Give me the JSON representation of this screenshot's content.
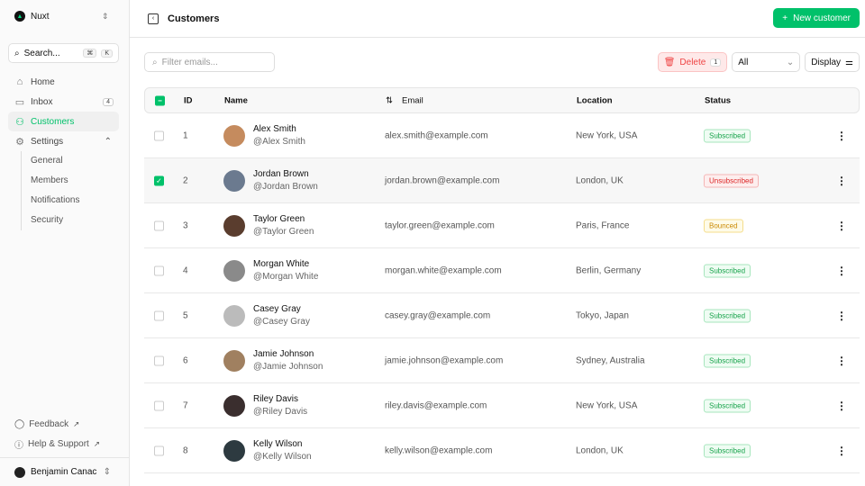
{
  "sidebar": {
    "brand": "Nuxt",
    "search": "Search...",
    "kbd": [
      "⌘",
      "K"
    ],
    "nav": [
      {
        "label": "Home",
        "icon": "home-icon"
      },
      {
        "label": "Inbox",
        "icon": "inbox-icon",
        "badge": "4"
      },
      {
        "label": "Customers",
        "icon": "users-icon",
        "active": true
      },
      {
        "label": "Settings",
        "icon": "gear-icon"
      }
    ],
    "settings_sub": [
      "General",
      "Members",
      "Notifications",
      "Security"
    ],
    "footer": [
      "Feedback",
      "Help & Support"
    ],
    "user": "Benjamin Canac"
  },
  "header": {
    "title": "Customers",
    "new_button": "New customer"
  },
  "toolbar": {
    "filter_placeholder": "Filter emails...",
    "delete": "Delete",
    "delete_count": "1",
    "status_filter": "All",
    "display": "Display"
  },
  "table": {
    "headers": {
      "id": "ID",
      "name": "Name",
      "email": "Email",
      "location": "Location",
      "status": "Status"
    },
    "rows": [
      {
        "id": "1",
        "name": "Alex Smith",
        "handle": "@Alex Smith",
        "email": "alex.smith@example.com",
        "location": "New York, USA",
        "status": "Subscribed",
        "selected": false
      },
      {
        "id": "2",
        "name": "Jordan Brown",
        "handle": "@Jordan Brown",
        "email": "jordan.brown@example.com",
        "location": "London, UK",
        "status": "Unsubscribed",
        "selected": true
      },
      {
        "id": "3",
        "name": "Taylor Green",
        "handle": "@Taylor Green",
        "email": "taylor.green@example.com",
        "location": "Paris, France",
        "status": "Bounced",
        "selected": false
      },
      {
        "id": "4",
        "name": "Morgan White",
        "handle": "@Morgan White",
        "email": "morgan.white@example.com",
        "location": "Berlin, Germany",
        "status": "Subscribed",
        "selected": false
      },
      {
        "id": "5",
        "name": "Casey Gray",
        "handle": "@Casey Gray",
        "email": "casey.gray@example.com",
        "location": "Tokyo, Japan",
        "status": "Subscribed",
        "selected": false
      },
      {
        "id": "6",
        "name": "Jamie Johnson",
        "handle": "@Jamie Johnson",
        "email": "jamie.johnson@example.com",
        "location": "Sydney, Australia",
        "status": "Subscribed",
        "selected": false
      },
      {
        "id": "7",
        "name": "Riley Davis",
        "handle": "@Riley Davis",
        "email": "riley.davis@example.com",
        "location": "New York, USA",
        "status": "Subscribed",
        "selected": false
      },
      {
        "id": "8",
        "name": "Kelly Wilson",
        "handle": "@Kelly Wilson",
        "email": "kelly.wilson@example.com",
        "location": "London, UK",
        "status": "Subscribed",
        "selected": false
      }
    ]
  },
  "colors": {
    "accent": "#00c16a",
    "danger": "#ef4444",
    "warning": "#ca8a04"
  }
}
